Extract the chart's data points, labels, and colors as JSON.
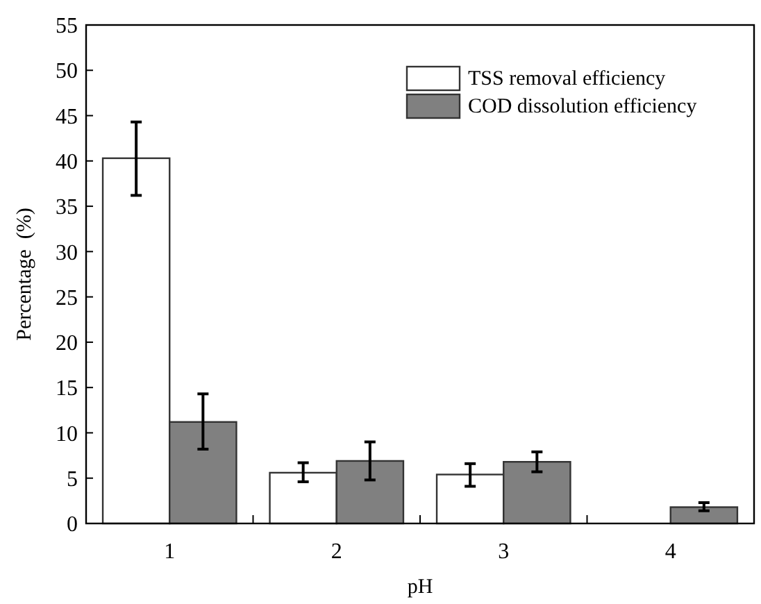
{
  "chart_data": {
    "type": "bar",
    "xlabel": "pH",
    "ylabel": "Percentage  (%)",
    "categories": [
      "1",
      "2",
      "3",
      "4"
    ],
    "series": [
      {
        "name": "TSS removal efficiency",
        "color": "#ffffff",
        "values": [
          40.3,
          5.6,
          5.4,
          null
        ],
        "errors": [
          [
            36.2,
            44.3
          ],
          [
            4.6,
            6.7
          ],
          [
            4.1,
            6.6
          ],
          null
        ]
      },
      {
        "name": "COD dissolution efficiency",
        "color": "#808080",
        "values": [
          11.2,
          6.9,
          6.8,
          1.8
        ],
        "errors": [
          [
            8.2,
            14.3
          ],
          [
            4.8,
            9.0
          ],
          [
            5.7,
            7.9
          ],
          [
            1.4,
            2.3
          ]
        ]
      }
    ],
    "ylim": [
      0,
      55
    ],
    "yticks": [
      0,
      5,
      10,
      15,
      20,
      25,
      30,
      35,
      40,
      45,
      50,
      55
    ],
    "legend": "top right"
  }
}
